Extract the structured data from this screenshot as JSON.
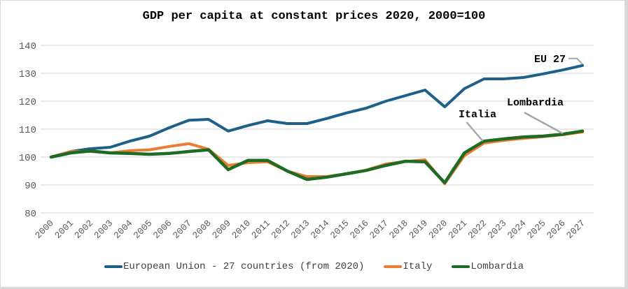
{
  "chart_data": {
    "type": "line",
    "title": "GDP per capita at constant prices 2020, 2000=100",
    "xlabel": "",
    "ylabel": "",
    "ylim": [
      80,
      140
    ],
    "yticks": [
      80,
      90,
      100,
      110,
      120,
      130,
      140
    ],
    "grid": true,
    "legend_position": "bottom",
    "categories": [
      "2000",
      "2001",
      "2002",
      "2003",
      "2004",
      "2005",
      "2006",
      "2007",
      "2008",
      "2009",
      "2010",
      "2011",
      "2012",
      "2013",
      "2014",
      "2015",
      "2016",
      "2017",
      "2018",
      "2019",
      "2020",
      "2021",
      "2022",
      "2023",
      "2024",
      "2025",
      "2026",
      "2027"
    ],
    "series": [
      {
        "name": "European Union - 27 countries (from 2020)",
        "color": "#1f6088",
        "values": [
          100,
          102,
          103,
          103.5,
          105.7,
          107.5,
          110.5,
          113.2,
          113.5,
          109.3,
          111.3,
          113,
          112,
          112,
          113.8,
          115.8,
          117.5,
          120,
          122,
          124,
          118,
          124.5,
          128,
          128,
          128.5,
          129.8,
          131.2,
          132.8
        ]
      },
      {
        "name": "Italy",
        "color": "#ed7d31",
        "values": [
          100,
          102,
          102,
          101.5,
          102.3,
          102.6,
          103.8,
          104.8,
          102.8,
          97,
          98,
          98.3,
          95,
          93,
          93,
          94,
          95.3,
          97.5,
          98.4,
          99,
          90.5,
          100.5,
          105,
          106,
          106.7,
          107.3,
          108,
          109
        ]
      },
      {
        "name": "Lombardia",
        "color": "#1e6b24",
        "values": [
          100,
          101.5,
          102.2,
          101.5,
          101.3,
          101,
          101.3,
          102,
          102.6,
          95.5,
          98.8,
          98.8,
          95,
          92,
          92.8,
          94,
          95.2,
          97,
          98.5,
          98.3,
          90.8,
          101.5,
          105.7,
          106.5,
          107.2,
          107.5,
          108.2,
          109.3
        ]
      }
    ],
    "annotations": [
      {
        "text": "EU 27",
        "series": 0,
        "points_to": "2027"
      },
      {
        "text": "Italia",
        "series": 1,
        "points_to": "2022"
      },
      {
        "text": "Lombardia",
        "series": 2,
        "points_to": "2026"
      }
    ],
    "annotation_line_color": "#a6a6a6",
    "gridline_color": "#d9d9d9"
  }
}
